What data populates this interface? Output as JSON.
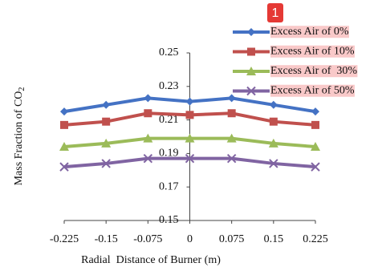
{
  "chart_data": {
    "type": "line",
    "annotation": "1",
    "x_label": "Radial  Distance of Burner (m)",
    "y_label": {
      "text": "Mass Fraction of CO",
      "subscript": "2"
    },
    "x": [
      -0.225,
      -0.15,
      -0.075,
      0,
      0.075,
      0.15,
      0.225
    ],
    "xlim": [
      -0.225,
      0.225
    ],
    "xticks": [
      -0.225,
      -0.15,
      -0.075,
      0,
      0.075,
      0.15,
      0.225
    ],
    "ylim": [
      0.15,
      0.25
    ],
    "yticks": [
      0.15,
      0.17,
      0.19,
      0.21,
      0.23,
      0.25
    ],
    "legend": "upper right",
    "series": [
      {
        "name": "Excess Air of 0%",
        "color": "#4472c4",
        "marker": "diamond",
        "values": [
          0.215,
          0.219,
          0.223,
          0.221,
          0.223,
          0.219,
          0.215
        ]
      },
      {
        "name": "Excess Air of 10%",
        "color": "#c0504d",
        "marker": "square",
        "values": [
          0.207,
          0.209,
          0.214,
          0.213,
          0.214,
          0.209,
          0.207
        ]
      },
      {
        "name": "Excess Air of  30%",
        "color": "#9bbb59",
        "marker": "triangle",
        "values": [
          0.194,
          0.196,
          0.199,
          0.199,
          0.199,
          0.196,
          0.194
        ]
      },
      {
        "name": "Excess Air of 50%",
        "color": "#8064a2",
        "marker": "cross",
        "values": [
          0.182,
          0.184,
          0.187,
          0.187,
          0.187,
          0.184,
          0.182
        ]
      }
    ]
  }
}
